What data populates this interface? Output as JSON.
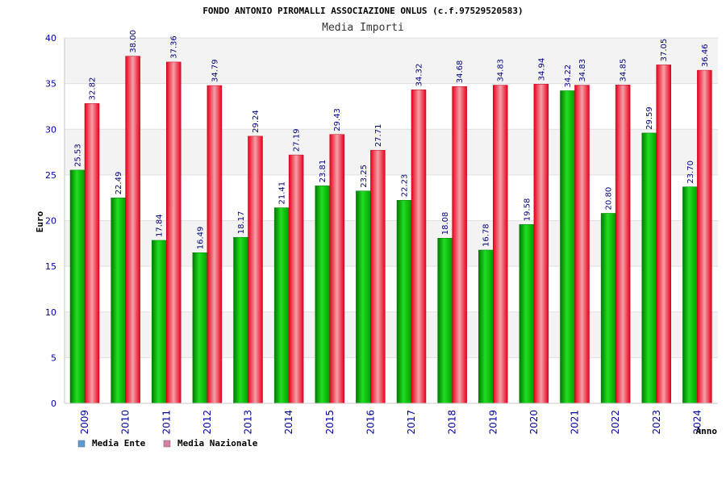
{
  "chart_data": {
    "type": "bar",
    "title": "FONDO ANTONIO PIROMALLI ASSOCIAZIONE ONLUS (c.f.97529520583)",
    "subtitle": "Media Importi",
    "xlabel": "Anno",
    "ylabel": "Euro",
    "ylim": [
      0,
      40
    ],
    "yticks": [
      "0",
      "5",
      "10",
      "15",
      "20",
      "25",
      "30",
      "35",
      "40"
    ],
    "grid": true,
    "legend_position": "bottom-left",
    "categories": [
      "2009",
      "2010",
      "2011",
      "2012",
      "2013",
      "2014",
      "2015",
      "2016",
      "2017",
      "2018",
      "2019",
      "2020",
      "2021",
      "2022",
      "2023",
      "2024"
    ],
    "series": [
      {
        "name": "Media Ente",
        "color": "#00b000",
        "legend_color": "#5b9bd5",
        "values": [
          25.53,
          22.49,
          17.84,
          16.49,
          18.17,
          21.41,
          23.81,
          23.25,
          22.23,
          18.08,
          16.78,
          19.58,
          34.22,
          20.8,
          29.59,
          23.7
        ],
        "labels": [
          "25.53",
          "22.49",
          "17.84",
          "16.49",
          "18.17",
          "21.41",
          "23.81",
          "23.25",
          "22.23",
          "18.08",
          "16.78",
          "19.58",
          "34.22",
          "20.80",
          "29.59",
          "23.70"
        ]
      },
      {
        "name": "Media Nazionale",
        "color": "#e8001c",
        "legend_color": "#d87fa8",
        "values": [
          32.82,
          38.0,
          37.36,
          34.79,
          29.24,
          27.19,
          29.43,
          27.71,
          34.32,
          34.68,
          34.83,
          34.94,
          34.83,
          34.85,
          37.05,
          36.46
        ],
        "labels": [
          "32.82",
          "38.00",
          "37.36",
          "34.79",
          "29.24",
          "27.19",
          "29.43",
          "27.71",
          "34.32",
          "34.68",
          "34.83",
          "34.94",
          "34.83",
          "34.85",
          "37.05",
          "36.46"
        ]
      }
    ]
  }
}
